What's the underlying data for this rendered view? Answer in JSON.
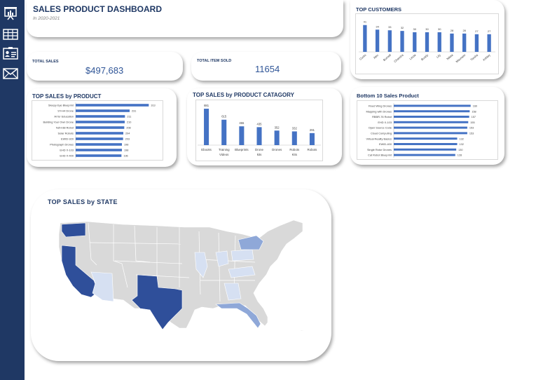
{
  "sidebar": {
    "icons": [
      "presentation-icon",
      "table-icon",
      "contact-card-icon",
      "envelope-icon"
    ]
  },
  "header": {
    "title": "SALES PRODUCT DASHBOARD",
    "subtitle": "In 2020-2021"
  },
  "kpis": {
    "total_sales_label": "TOTAL SALES",
    "total_sales_value": "$497,683",
    "total_items_label": "TOTAL ITEM SOLD",
    "total_items_value": "11654"
  },
  "colors": {
    "sidebar": "#1f3864",
    "bar": "#4472c4",
    "map_dark": "#2f4f9a",
    "map_mid": "#8fa8d8",
    "map_light": "#d6e0f2",
    "map_base": "#d9d9d9"
  },
  "state_map": {
    "title": "TOP SALES by STATE"
  },
  "chart_data": [
    {
      "type": "bar",
      "title": "TOP CUSTOMERS",
      "categories": [
        "Curtis",
        "Alec",
        "Burnell",
        "Chandra",
        "Linda",
        "Buddy",
        "Lily",
        "Nikita",
        "Maureen",
        "Tiesha",
        "Ashley"
      ],
      "values": [
        41,
        34,
        33,
        32,
        30,
        30,
        30,
        28,
        28,
        27,
        27
      ],
      "ylim": [
        0,
        45
      ]
    },
    {
      "type": "bar",
      "orientation": "horizontal",
      "title": "TOP SALES by PRODUCT",
      "categories": [
        "Sleepy Eye Blueprint",
        "SY-H4 Drone",
        "AI for Education",
        "Building Your Own Drone",
        "NZH-88 Robot",
        "Solar Robots",
        "EWID-920",
        "Photograph Drones",
        "EHD X-103",
        "EHD X-400"
      ],
      "values": [
        313,
        231,
        211,
        210,
        208,
        204,
        203,
        198,
        198,
        196
      ],
      "xlim": [
        0,
        330
      ]
    },
    {
      "type": "bar",
      "title": "TOP SALES by PRODUCT CATAGORY",
      "categories": [
        "Ebooks",
        "Training Videos",
        "Blueprints",
        "Drone kits",
        "Drones",
        "Robots Kits",
        "Robots"
      ],
      "values": [
        881,
        615,
        455,
        435,
        352,
        332,
        291
      ],
      "ylim": [
        0,
        950
      ]
    },
    {
      "type": "bar",
      "orientation": "horizontal",
      "title": "Bottom 10 Sales Product",
      "categories": [
        "Fixed Wing Drones",
        "Mapping with Drones",
        "RBBR-76 Robot",
        "EHD X-103",
        "Open Source Code",
        "Cloud Computing",
        "Virtual Reality Basics",
        "EWID-400",
        "Single Rotor Drones",
        "Cat Robot Blueprint"
      ],
      "values": [
        160,
        158,
        157,
        155,
        153,
        153,
        132,
        132,
        130,
        128
      ],
      "xlim": [
        0,
        175
      ]
    }
  ]
}
